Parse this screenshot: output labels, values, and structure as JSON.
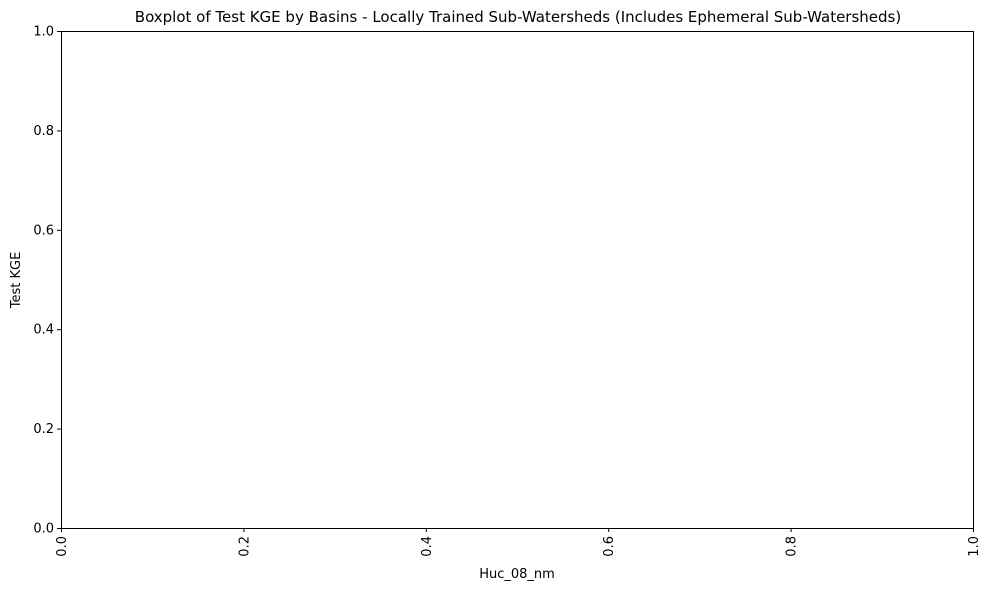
{
  "chart_data": {
    "type": "box",
    "title": "Boxplot of Test KGE by Basins - Locally Trained Sub-Watersheds (Includes Ephemeral Sub-Watersheds)",
    "xlabel": "Huc_08_nm",
    "ylabel": "Test KGE",
    "xlim": [
      0,
      1
    ],
    "ylim": [
      0,
      1
    ],
    "xticks": [
      "0.0",
      "0.2",
      "0.4",
      "0.6",
      "0.8",
      "1.0"
    ],
    "yticks": [
      "0.0",
      "0.2",
      "0.4",
      "0.6",
      "0.8",
      "1.0"
    ],
    "xtick_rotation": 90,
    "grid": false,
    "categories": [],
    "series": []
  }
}
